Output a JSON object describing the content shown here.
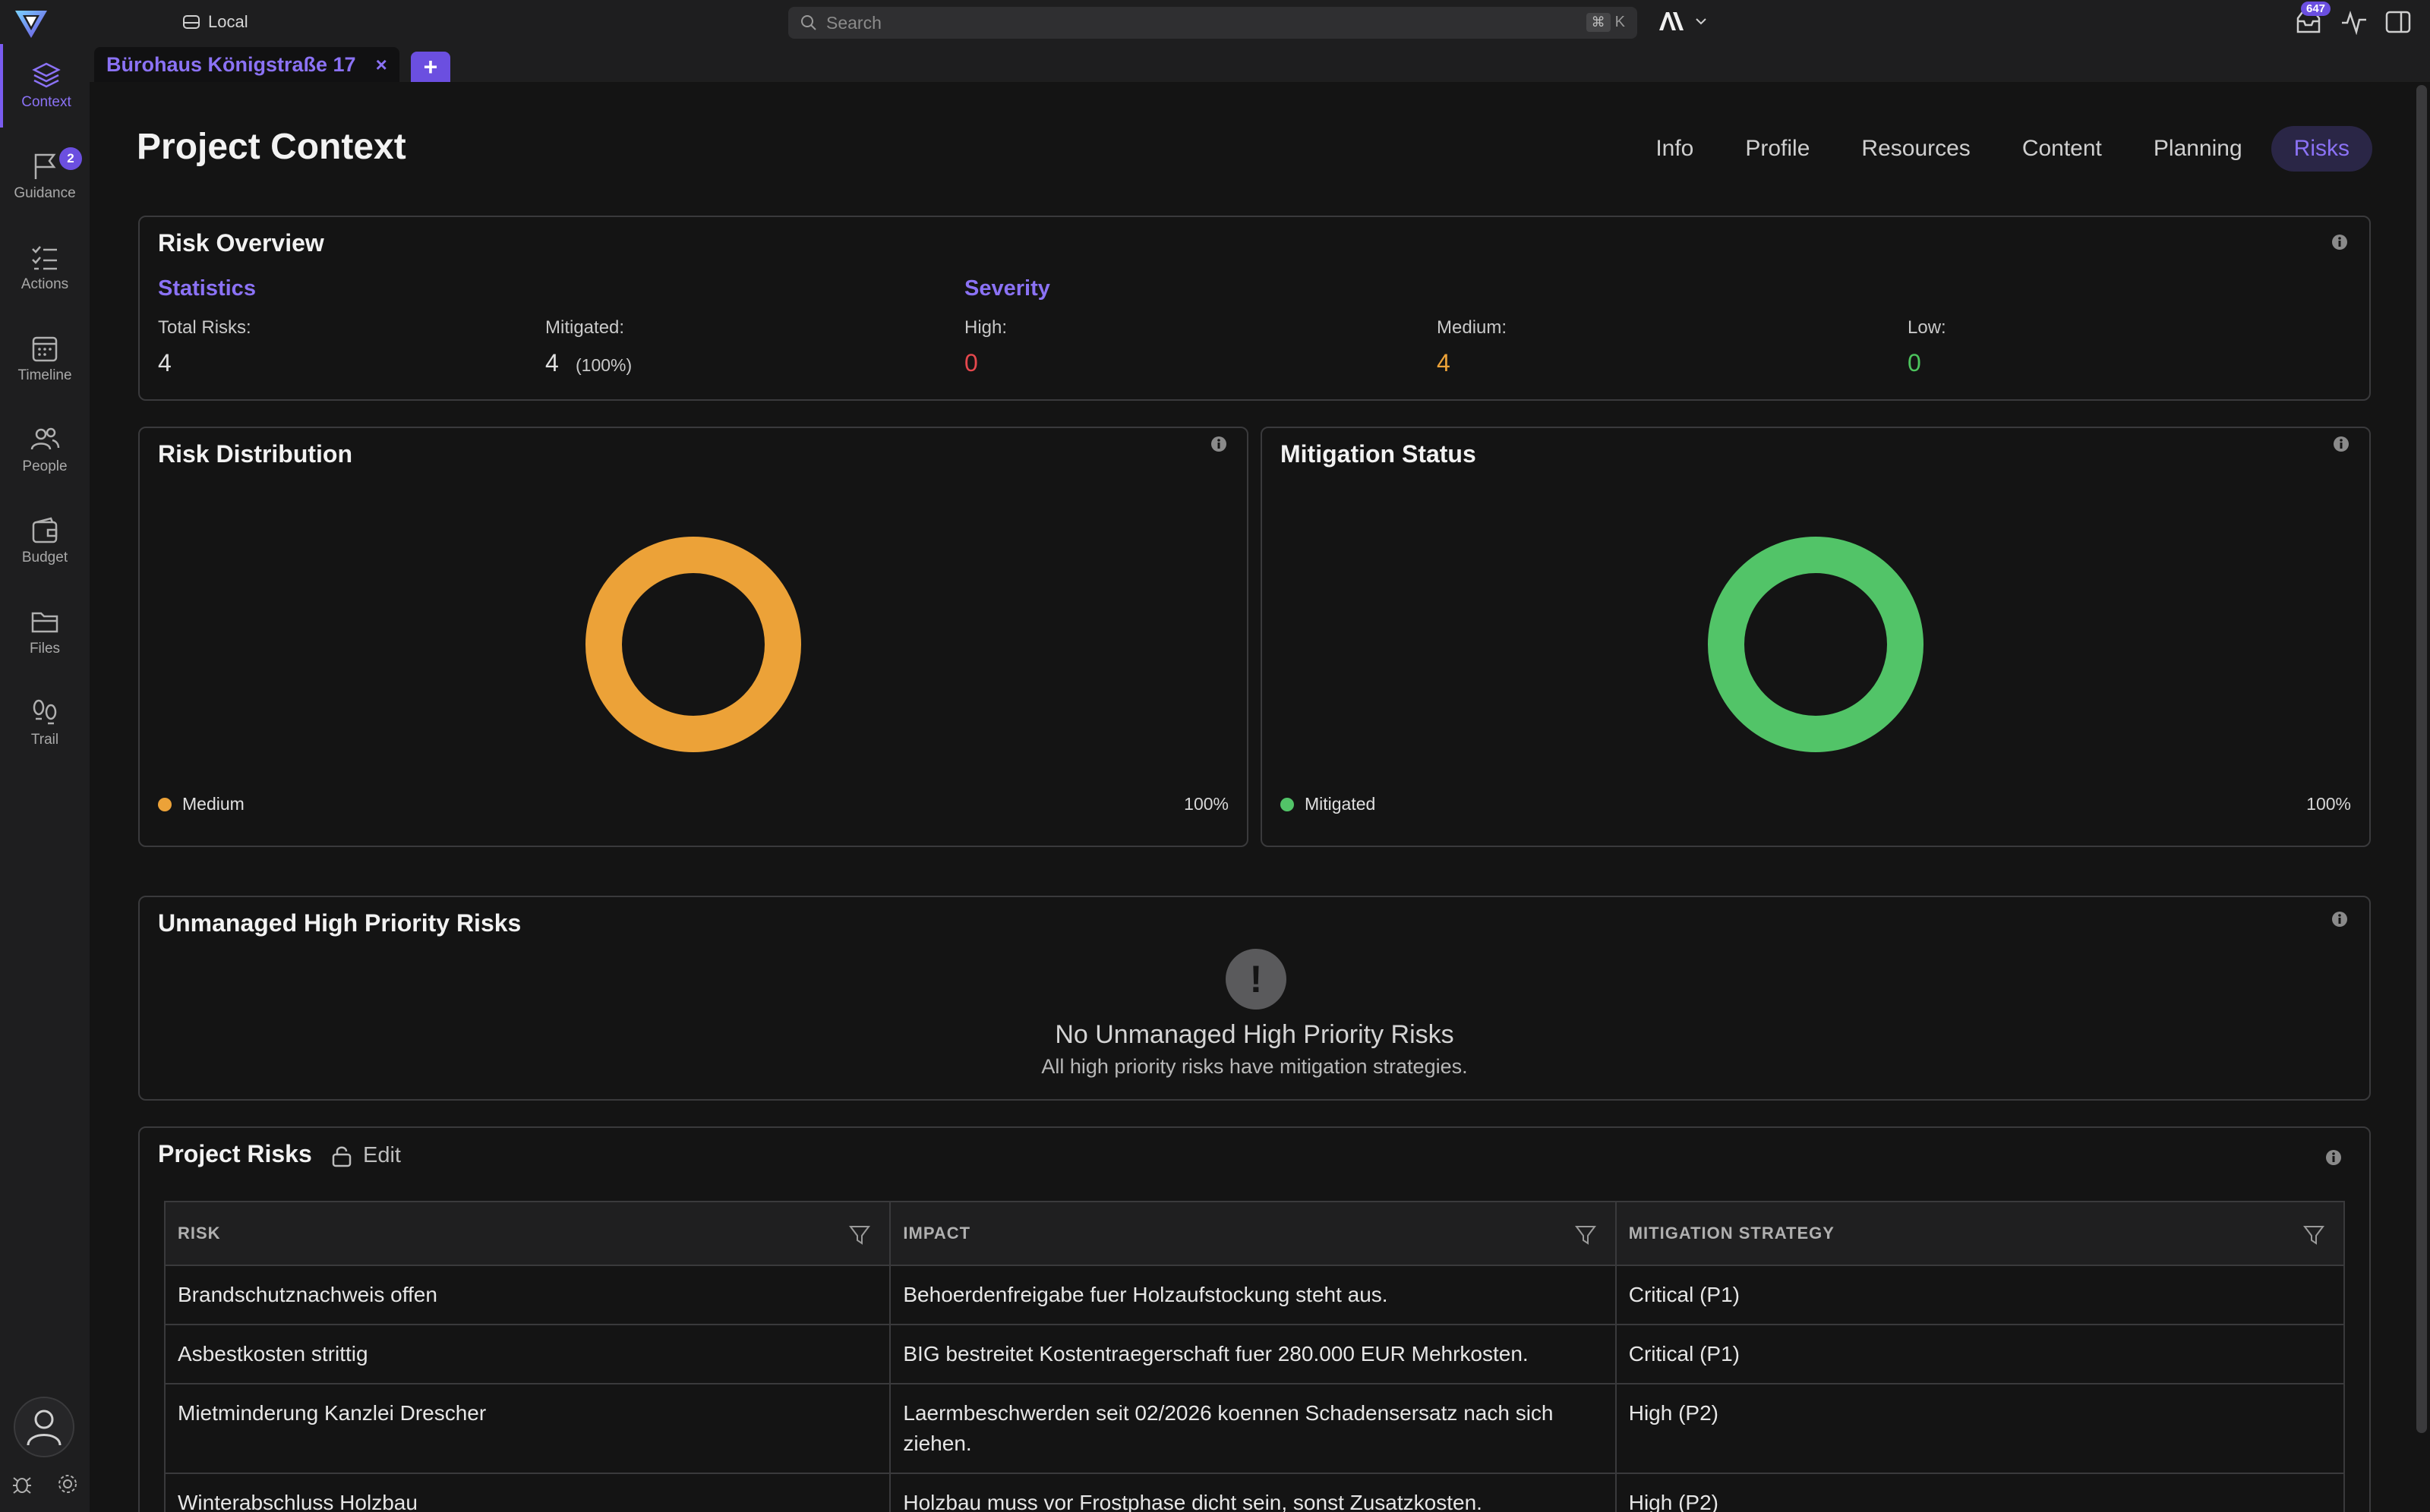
{
  "topbar": {
    "workspace_label": "Local",
    "search_placeholder": "Search",
    "shortcut_mod": "⌘",
    "shortcut_key": "K",
    "inbox_count": "647"
  },
  "sidebar": {
    "items": [
      {
        "label": "Context",
        "icon": "layers-icon",
        "active": true
      },
      {
        "label": "Guidance",
        "icon": "flag-icon",
        "badge": "2"
      },
      {
        "label": "Actions",
        "icon": "checklist-icon"
      },
      {
        "label": "Timeline",
        "icon": "calendar-icon"
      },
      {
        "label": "People",
        "icon": "people-icon"
      },
      {
        "label": "Budget",
        "icon": "wallet-icon"
      },
      {
        "label": "Files",
        "icon": "folder-icon"
      },
      {
        "label": "Trail",
        "icon": "footsteps-icon"
      }
    ]
  },
  "doc_tab": {
    "title": "Bürohaus Königstraße 17",
    "close": "×",
    "new": "+"
  },
  "page": {
    "title": "Project Context",
    "tabs": [
      "Info",
      "Profile",
      "Resources",
      "Content",
      "Planning",
      "Risks"
    ],
    "active_tab": "Risks"
  },
  "overview": {
    "title": "Risk Overview",
    "statistics_heading": "Statistics",
    "severity_heading": "Severity",
    "total_label": "Total Risks:",
    "total_value": "4",
    "mitigated_label": "Mitigated:",
    "mitigated_value": "4",
    "mitigated_pct": "(100%)",
    "high_label": "High:",
    "high_value": "0",
    "medium_label": "Medium:",
    "medium_value": "4",
    "low_label": "Low:",
    "low_value": "0"
  },
  "colors": {
    "accent": "#8b72f5",
    "high": "#e5484d",
    "medium": "#eca238",
    "low": "#4cc35d",
    "mitigated": "#52c468"
  },
  "distribution": {
    "title": "Risk Distribution",
    "legend_label": "Medium",
    "legend_pct": "100%"
  },
  "mitigation": {
    "title": "Mitigation Status",
    "legend_label": "Mitigated",
    "legend_pct": "100%"
  },
  "chart_data": [
    {
      "type": "pie",
      "title": "Risk Distribution",
      "categories": [
        "Medium"
      ],
      "values": [
        100
      ],
      "colors": [
        "#eca238"
      ],
      "donut": true
    },
    {
      "type": "pie",
      "title": "Mitigation Status",
      "categories": [
        "Mitigated"
      ],
      "values": [
        100
      ],
      "colors": [
        "#52c468"
      ],
      "donut": true
    }
  ],
  "unmanaged": {
    "title": "Unmanaged High Priority Risks",
    "empty_icon": "!",
    "empty_title": "No Unmanaged High Priority Risks",
    "empty_subtitle": "All high priority risks have mitigation strategies."
  },
  "risks": {
    "title": "Project Risks",
    "edit_label": "Edit",
    "columns": [
      "RISK",
      "IMPACT",
      "MITIGATION STRATEGY"
    ],
    "rows": [
      {
        "risk": "Brandschutznachweis offen",
        "impact": "Behoerdenfreigabe fuer Holzaufstockung steht aus.",
        "mitigation": "Critical (P1)"
      },
      {
        "risk": "Asbestkosten strittig",
        "impact": "BIG bestreitet Kostentraegerschaft fuer 280.000 EUR Mehrkosten.",
        "mitigation": "Critical (P1)"
      },
      {
        "risk": "Mietminderung Kanzlei Drescher",
        "impact": "Laermbeschwerden seit 02/2026 koennen Schadensersatz nach sich ziehen.",
        "mitigation": "High (P2)"
      },
      {
        "risk": "Winterabschluss Holzbau",
        "impact": "Holzbau muss vor Frostphase dicht sein, sonst Zusatzkosten.",
        "mitigation": "High (P2)"
      }
    ]
  }
}
